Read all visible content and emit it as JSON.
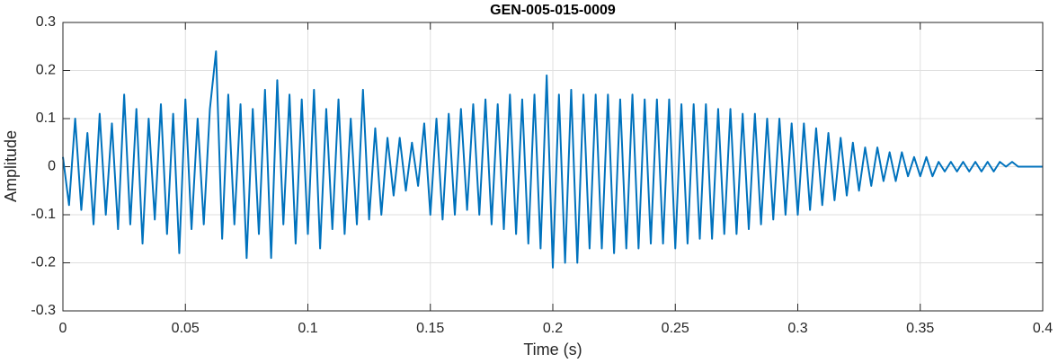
{
  "chart_data": {
    "type": "line",
    "title": "GEN-005-015-0009",
    "xlabel": "Time (s)",
    "ylabel": "Amplitude",
    "color": "#0072bd",
    "grid": true,
    "xlim": [
      0,
      0.4
    ],
    "xticks": [
      0,
      0.05,
      0.1,
      0.15,
      0.2,
      0.25,
      0.3,
      0.35,
      0.4
    ],
    "ylim": [
      -0.3,
      0.3
    ],
    "yticks": [
      -0.3,
      -0.2,
      -0.1,
      0,
      0.1,
      0.2,
      0.3
    ],
    "x": [
      0,
      0.0025,
      0.005,
      0.0075,
      0.01,
      0.0125,
      0.015,
      0.0175,
      0.02,
      0.0225,
      0.025,
      0.0275,
      0.03,
      0.0325,
      0.035,
      0.0375,
      0.04,
      0.0425,
      0.045,
      0.0475,
      0.05,
      0.0525,
      0.055,
      0.0575,
      0.06,
      0.0625,
      0.065,
      0.0675,
      0.07,
      0.0725,
      0.075,
      0.0775,
      0.08,
      0.0825,
      0.085,
      0.0875,
      0.09,
      0.0925,
      0.095,
      0.0975,
      0.1,
      0.1025,
      0.105,
      0.1075,
      0.11,
      0.1125,
      0.115,
      0.1175,
      0.12,
      0.1225,
      0.125,
      0.1275,
      0.13,
      0.1325,
      0.135,
      0.1375,
      0.14,
      0.1425,
      0.145,
      0.1475,
      0.15,
      0.1525,
      0.155,
      0.1575,
      0.16,
      0.1625,
      0.165,
      0.1675,
      0.17,
      0.1725,
      0.175,
      0.1775,
      0.18,
      0.1825,
      0.185,
      0.1875,
      0.19,
      0.1925,
      0.195,
      0.1975,
      0.2,
      0.2025,
      0.205,
      0.2075,
      0.21,
      0.2125,
      0.215,
      0.2175,
      0.22,
      0.2225,
      0.225,
      0.2275,
      0.23,
      0.2325,
      0.235,
      0.2375,
      0.24,
      0.2425,
      0.245,
      0.2475,
      0.25,
      0.2525,
      0.255,
      0.2575,
      0.26,
      0.2625,
      0.265,
      0.2675,
      0.27,
      0.2725,
      0.275,
      0.2775,
      0.28,
      0.2825,
      0.285,
      0.2875,
      0.29,
      0.2925,
      0.295,
      0.2975,
      0.3,
      0.3025,
      0.305,
      0.3075,
      0.31,
      0.3125,
      0.315,
      0.3175,
      0.32,
      0.3225,
      0.325,
      0.3275,
      0.33,
      0.3325,
      0.335,
      0.3375,
      0.34,
      0.3425,
      0.345,
      0.3475,
      0.35,
      0.3525,
      0.355,
      0.3575,
      0.36,
      0.3625,
      0.365,
      0.3675,
      0.37,
      0.3725,
      0.375,
      0.3775,
      0.38,
      0.3825,
      0.385,
      0.3875,
      0.39,
      0.3925,
      0.395,
      0.3975,
      0.4
    ],
    "values": [
      0.02,
      -0.08,
      0.1,
      -0.09,
      0.07,
      -0.12,
      0.11,
      -0.1,
      0.09,
      -0.13,
      0.15,
      -0.12,
      0.12,
      -0.16,
      0.1,
      -0.11,
      0.13,
      -0.14,
      0.11,
      -0.18,
      0.14,
      -0.13,
      0.1,
      -0.12,
      0.12,
      0.24,
      -0.15,
      0.15,
      -0.12,
      0.13,
      -0.19,
      0.12,
      -0.14,
      0.16,
      -0.19,
      0.18,
      -0.12,
      0.15,
      -0.16,
      0.14,
      -0.14,
      0.16,
      -0.17,
      0.12,
      -0.13,
      0.14,
      -0.14,
      0.1,
      -0.12,
      0.16,
      -0.11,
      0.08,
      -0.1,
      0.06,
      -0.06,
      0.06,
      -0.05,
      0.05,
      -0.04,
      0.09,
      -0.1,
      0.1,
      -0.11,
      0.11,
      -0.1,
      0.12,
      -0.09,
      0.13,
      -0.1,
      0.14,
      -0.12,
      0.13,
      -0.13,
      0.15,
      -0.14,
      0.14,
      -0.16,
      0.15,
      -0.17,
      0.19,
      -0.21,
      0.15,
      -0.2,
      0.16,
      -0.2,
      0.15,
      -0.17,
      0.15,
      -0.17,
      0.15,
      -0.18,
      0.14,
      -0.17,
      0.15,
      -0.17,
      0.14,
      -0.16,
      0.14,
      -0.16,
      0.14,
      -0.17,
      0.13,
      -0.16,
      0.13,
      -0.15,
      0.13,
      -0.15,
      0.12,
      -0.14,
      0.12,
      -0.14,
      0.11,
      -0.13,
      0.11,
      -0.12,
      0.1,
      -0.11,
      0.1,
      -0.1,
      0.09,
      -0.1,
      0.09,
      -0.09,
      0.08,
      -0.08,
      0.07,
      -0.07,
      0.06,
      -0.06,
      0.05,
      -0.05,
      0.04,
      -0.04,
      0.04,
      -0.03,
      0.03,
      -0.03,
      0.03,
      -0.02,
      0.02,
      -0.02,
      0.02,
      -0.02,
      0.01,
      -0.01,
      0.01,
      -0.01,
      0.01,
      -0.01,
      0.01,
      -0.01,
      0.01,
      -0.01,
      0.01,
      0,
      0.01,
      0,
      0,
      0,
      0,
      0
    ]
  }
}
